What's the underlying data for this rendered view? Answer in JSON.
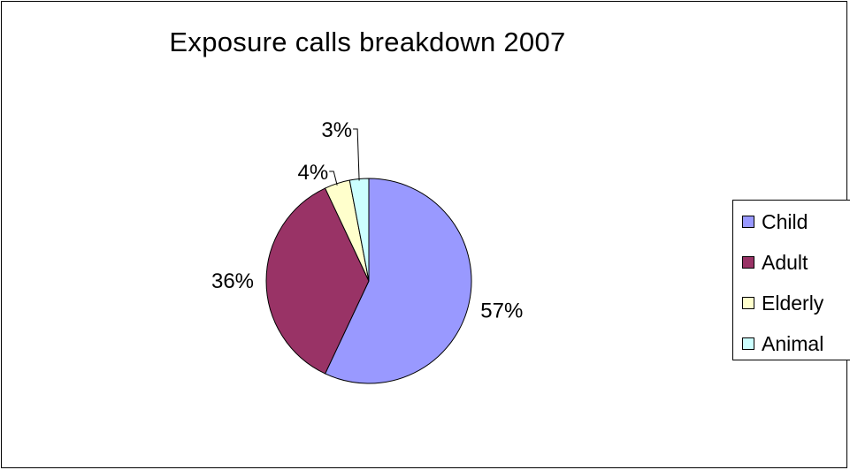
{
  "chart_data": {
    "type": "pie",
    "title": "Exposure calls breakdown 2007",
    "categories": [
      "Child",
      "Adult",
      "Elderly",
      "Animal"
    ],
    "values": [
      57,
      36,
      4,
      3
    ],
    "value_labels": [
      "57%",
      "36%",
      "4%",
      "3%"
    ],
    "colors": [
      "#9999ff",
      "#993366",
      "#ffffcc",
      "#ccffff"
    ],
    "legend_position": "right",
    "start_angle": "top, clockwise"
  }
}
